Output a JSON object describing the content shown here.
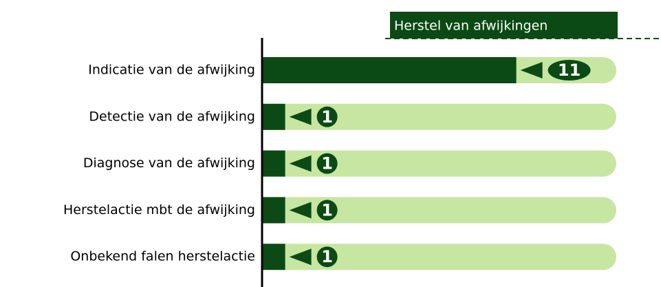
{
  "chart_data": {
    "type": "bar",
    "orientation": "horizontal",
    "title": "Herstel van afwijkingen",
    "categories": [
      "Indicatie van de afwijking",
      "Detectie van de afwijking",
      "Diagnose van de afwijking",
      "Herstelactie mbt de afwijking",
      "Onbekend falen herstelactie"
    ],
    "values": [
      11,
      1,
      1,
      1,
      1
    ],
    "color": "#0b4a14",
    "track_color": "#c6e6a2",
    "xlim": [
      0,
      15
    ]
  }
}
